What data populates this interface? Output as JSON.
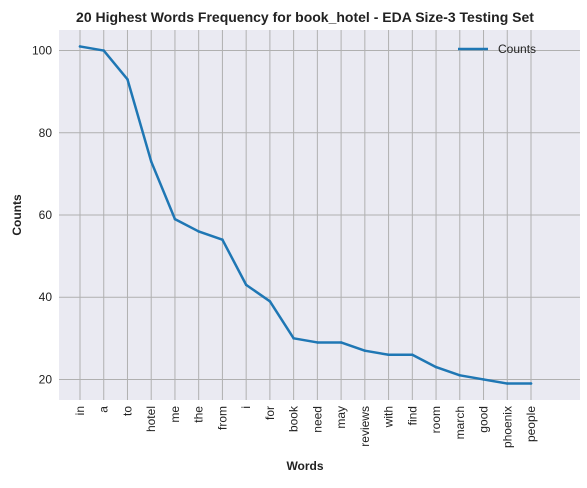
{
  "chart_data": {
    "type": "line",
    "title": "20 Highest Words Frequency for book_hotel - EDA Size-3 Testing Set",
    "xlabel": "Words",
    "ylabel": "Counts",
    "categories": [
      "in",
      "a",
      "to",
      "hotel",
      "me",
      "the",
      "from",
      "i",
      "for",
      "book",
      "need",
      "may",
      "reviews",
      "with",
      "find",
      "room",
      "march",
      "good",
      "phoenix",
      "people"
    ],
    "series": [
      {
        "name": "Counts",
        "values": [
          101,
          100,
          93,
          73,
          59,
          56,
          54,
          43,
          39,
          30,
          29,
          29,
          27,
          26,
          26,
          23,
          21,
          20,
          19,
          19
        ],
        "color": "#1f77b4"
      }
    ],
    "ylim": [
      15,
      105
    ],
    "yticks": [
      20,
      40,
      60,
      80,
      100
    ],
    "grid": true,
    "legend_position": "top-right",
    "colors": {
      "plot_background": "#eaeaf2",
      "grid": "#b0b0b0",
      "line": "#1f77b4"
    }
  }
}
